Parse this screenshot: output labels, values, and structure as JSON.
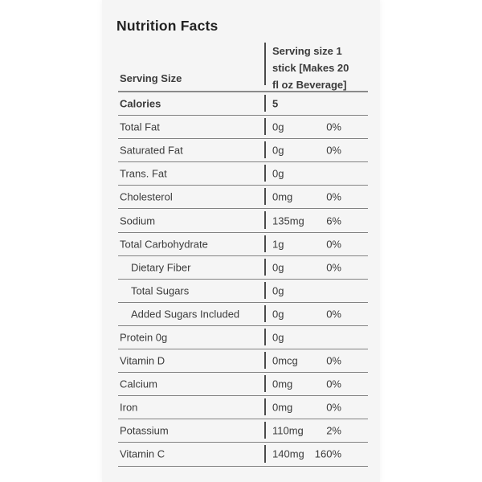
{
  "panel": {
    "title": "Nutrition Facts",
    "serving_row": {
      "label": "Serving Size",
      "value": "Serving size 1\nstick [Makes 20\nfl oz Beverage]"
    },
    "rows": [
      {
        "label": "Calories",
        "value": "5",
        "pct": "",
        "bold": true,
        "indent": false
      },
      {
        "label": "Total Fat",
        "value": "0g",
        "pct": "0%",
        "bold": false,
        "indent": false
      },
      {
        "label": "Saturated Fat",
        "value": "0g",
        "pct": "0%",
        "bold": false,
        "indent": false
      },
      {
        "label": "Trans. Fat",
        "value": "0g",
        "pct": "",
        "bold": false,
        "indent": false
      },
      {
        "label": "Cholesterol",
        "value": "0mg",
        "pct": "0%",
        "bold": false,
        "indent": false
      },
      {
        "label": "Sodium",
        "value": "135mg",
        "pct": "6%",
        "bold": false,
        "indent": false
      },
      {
        "label": "Total Carbohydrate",
        "value": "1g",
        "pct": "0%",
        "bold": false,
        "indent": false
      },
      {
        "label": "Dietary Fiber",
        "value": "0g",
        "pct": "0%",
        "bold": false,
        "indent": true
      },
      {
        "label": "Total Sugars",
        "value": "0g",
        "pct": "",
        "bold": false,
        "indent": true
      },
      {
        "label": "Added Sugars Included",
        "value": "0g",
        "pct": "0%",
        "bold": false,
        "indent": true
      },
      {
        "label": "Protein 0g",
        "value": "0g",
        "pct": "",
        "bold": false,
        "indent": false
      },
      {
        "label": "Vitamin D",
        "value": "0mcg",
        "pct": "0%",
        "bold": false,
        "indent": false
      },
      {
        "label": "Calcium",
        "value": "0mg",
        "pct": "0%",
        "bold": false,
        "indent": false
      },
      {
        "label": "Iron",
        "value": "0mg",
        "pct": "0%",
        "bold": false,
        "indent": false
      },
      {
        "label": "Potassium",
        "value": "110mg",
        "pct": "2%",
        "bold": false,
        "indent": false
      },
      {
        "label": "Vitamin C",
        "value": "140mg",
        "pct": "160%",
        "bold": false,
        "indent": false
      }
    ]
  },
  "colors": {
    "page_bg": "#ffffff",
    "card_bg": "#f5f5f5",
    "title_text": "#222222",
    "body_text": "#3b3b3b",
    "divider": "#828282",
    "column_tick": "#4a4a4a"
  }
}
